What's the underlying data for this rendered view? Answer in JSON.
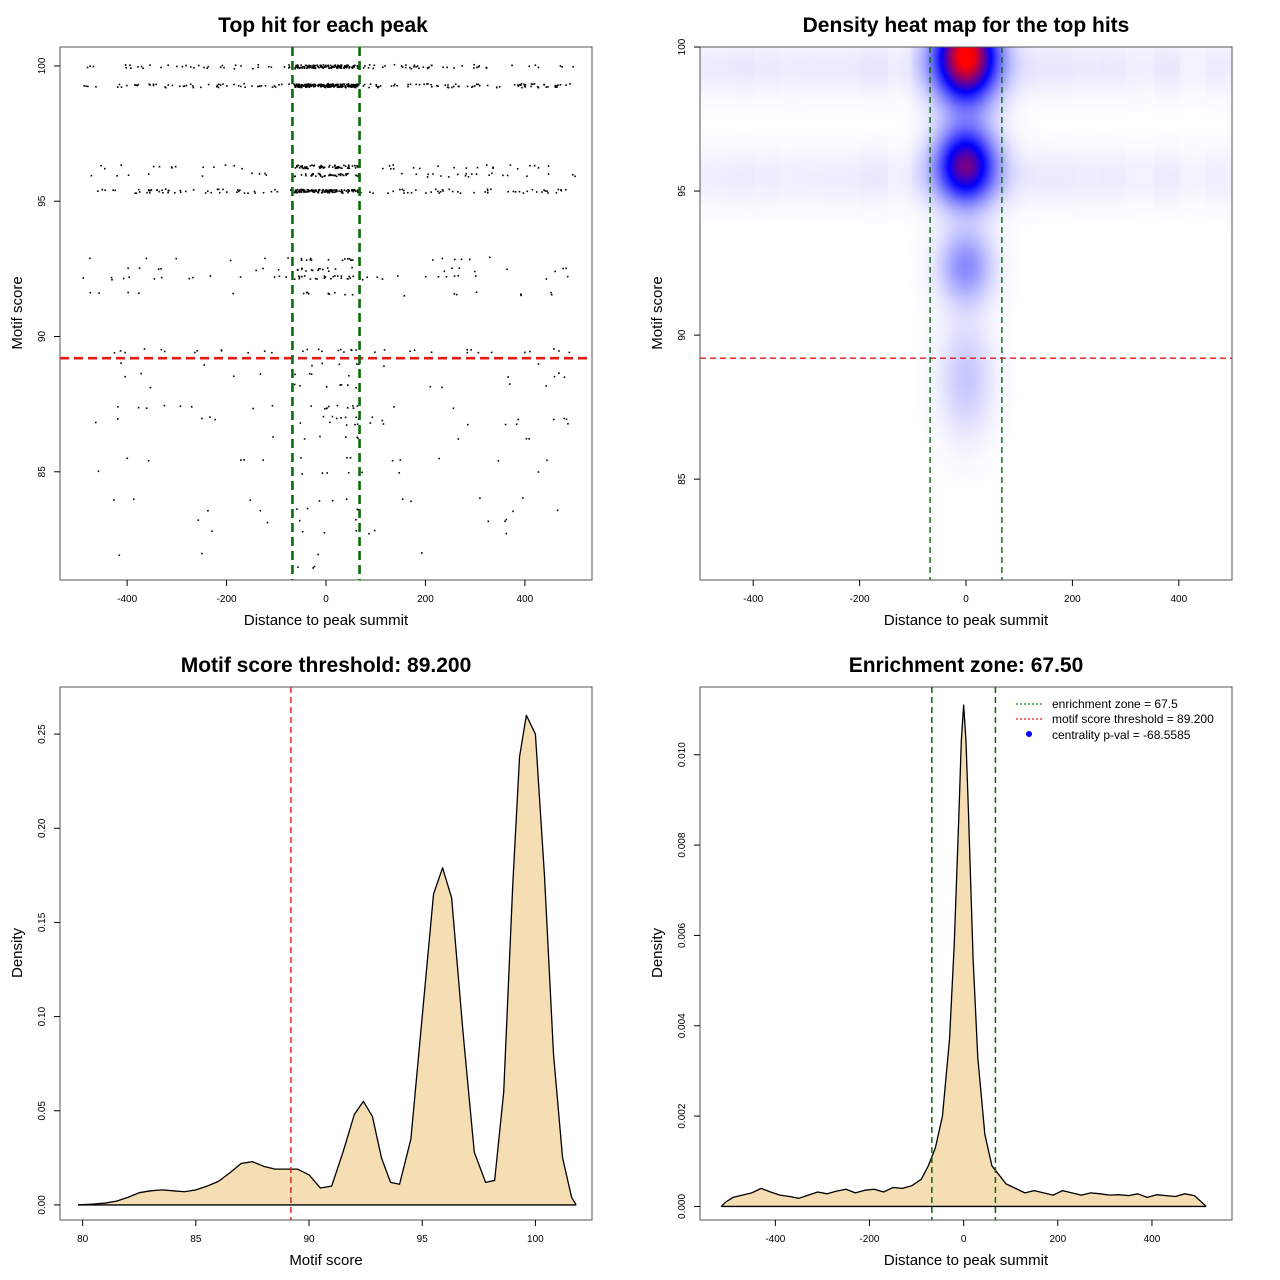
{
  "chart_data": [
    {
      "type": "scatter",
      "title": "Top hit for each peak",
      "xlabel": "Distance to peak summit",
      "ylabel": "Motif score",
      "xlim": [
        -535,
        535
      ],
      "ylim": [
        81,
        100.7
      ],
      "xticks": [
        -400,
        -200,
        0,
        200,
        400
      ],
      "yticks": [
        85,
        90,
        95,
        100
      ],
      "score_levels": [
        {
          "score": 100.0,
          "count": 90,
          "center": 120
        },
        {
          "score": 99.3,
          "count": 150,
          "center": 220
        },
        {
          "score": 96.3,
          "count": 40,
          "center": 60
        },
        {
          "score": 96.0,
          "count": 35,
          "center": 40
        },
        {
          "score": 95.4,
          "count": 110,
          "center": 120
        },
        {
          "score": 92.9,
          "count": 15,
          "center": 12
        },
        {
          "score": 92.5,
          "count": 18,
          "center": 12
        },
        {
          "score": 92.2,
          "count": 30,
          "center": 20
        },
        {
          "score": 91.6,
          "count": 15,
          "center": 8
        },
        {
          "score": 89.5,
          "count": 30,
          "center": 8
        },
        {
          "score": 89.0,
          "count": 6,
          "center": 3
        },
        {
          "score": 88.6,
          "count": 8,
          "center": 4
        },
        {
          "score": 88.2,
          "count": 8,
          "center": 4
        },
        {
          "score": 87.4,
          "count": 14,
          "center": 6
        },
        {
          "score": 87.0,
          "count": 12,
          "center": 5
        },
        {
          "score": 86.8,
          "count": 8,
          "center": 4
        },
        {
          "score": 86.3,
          "count": 6,
          "center": 3
        },
        {
          "score": 85.5,
          "count": 10,
          "center": 3
        },
        {
          "score": 85.0,
          "count": 6,
          "center": 2
        },
        {
          "score": 84.0,
          "count": 8,
          "center": 2
        },
        {
          "score": 83.6,
          "count": 6,
          "center": 2
        },
        {
          "score": 83.2,
          "count": 5,
          "center": 2
        },
        {
          "score": 82.8,
          "count": 5,
          "center": 2
        },
        {
          "score": 82.0,
          "count": 3,
          "center": 1
        },
        {
          "score": 81.5,
          "count": 2,
          "center": 1
        }
      ],
      "hlines": [
        {
          "y": 89.2,
          "color": "#e11a1a",
          "style": "dashed"
        }
      ],
      "vlines": [
        {
          "x": -67.5,
          "color": "#0a6b0a",
          "style": "dashed"
        },
        {
          "x": 67.5,
          "color": "#0a6b0a",
          "style": "dashed"
        }
      ]
    },
    {
      "type": "heatmap",
      "title": "Density heat map for the top hits",
      "xlabel": "Distance to peak summit",
      "ylabel": "Motif score",
      "xlim": [
        -500,
        500
      ],
      "ylim": [
        81.5,
        100
      ],
      "xticks": [
        -400,
        -200,
        0,
        200,
        400
      ],
      "yticks": [
        85,
        90,
        95,
        100
      ],
      "colors": {
        "low": "#ffffff",
        "mid": "#0000ff",
        "high": "#ff0000"
      },
      "hotspots": [
        {
          "x": 0,
          "y": 99.7,
          "sx": 40,
          "sy": 1.1,
          "w": 1.0
        },
        {
          "x": 0,
          "y": 95.9,
          "sx": 38,
          "sy": 0.9,
          "w": 0.72
        },
        {
          "x": 0,
          "y": 92.4,
          "sx": 35,
          "sy": 0.9,
          "w": 0.25
        },
        {
          "x": 0,
          "y": 88.5,
          "sx": 35,
          "sy": 1.4,
          "w": 0.12
        },
        {
          "x": 0,
          "y": 99.3,
          "sx": 520,
          "sy": 0.7,
          "w": 0.05
        },
        {
          "x": 0,
          "y": 95.5,
          "sx": 500,
          "sy": 0.7,
          "w": 0.045
        }
      ],
      "hlines": [
        {
          "y": 89.2,
          "color": "#e11a1a",
          "style": "dashed"
        }
      ],
      "vlines": [
        {
          "x": -67.5,
          "color": "#0a6b0a",
          "style": "dashed"
        },
        {
          "x": 67.5,
          "color": "#0a6b0a",
          "style": "dashed"
        }
      ]
    },
    {
      "type": "area",
      "title": "Motif score threshold: 89.200",
      "xlabel": "Motif score",
      "ylabel": "Density",
      "xlim": [
        79,
        102.5
      ],
      "ylim": [
        -0.008,
        0.275
      ],
      "xticks": [
        80,
        85,
        90,
        95,
        100
      ],
      "yticks": [
        0.0,
        0.05,
        0.1,
        0.15,
        0.2,
        0.25
      ],
      "ytick_labels": [
        "0.00",
        "0.05",
        "0.10",
        "0.15",
        "0.20",
        "0.25"
      ],
      "fill": "#f5deb3",
      "x": [
        79.8,
        80.5,
        81,
        81.5,
        82,
        82.5,
        83,
        83.5,
        84,
        84.5,
        85,
        85.5,
        86,
        86.5,
        87,
        87.5,
        88,
        88.5,
        89,
        89.5,
        90,
        90.5,
        91,
        91.5,
        92,
        92.4,
        92.8,
        93.2,
        93.6,
        94,
        94.5,
        95,
        95.5,
        95.9,
        96.3,
        96.8,
        97.3,
        97.8,
        98.2,
        98.6,
        99,
        99.3,
        99.6,
        100,
        100.4,
        100.8,
        101.2,
        101.6,
        101.8
      ],
      "values": [
        0.0,
        0.0005,
        0.001,
        0.002,
        0.004,
        0.0065,
        0.0075,
        0.008,
        0.0075,
        0.007,
        0.008,
        0.01,
        0.0125,
        0.017,
        0.022,
        0.023,
        0.0205,
        0.019,
        0.019,
        0.019,
        0.016,
        0.009,
        0.01,
        0.028,
        0.048,
        0.055,
        0.047,
        0.025,
        0.012,
        0.011,
        0.035,
        0.1,
        0.165,
        0.179,
        0.163,
        0.092,
        0.028,
        0.012,
        0.013,
        0.06,
        0.17,
        0.238,
        0.26,
        0.25,
        0.175,
        0.08,
        0.025,
        0.004,
        0.0
      ],
      "vlines": [
        {
          "x": 89.2,
          "color": "#e11a1a",
          "style": "dashed"
        }
      ]
    },
    {
      "type": "area",
      "title": "Enrichment zone: 67.50",
      "xlabel": "Distance to peak summit",
      "ylabel": "Density",
      "xlim": [
        -560,
        570
      ],
      "ylim": [
        -0.0003,
        0.0115
      ],
      "xticks": [
        -400,
        -200,
        0,
        200,
        400
      ],
      "yticks": [
        0.0,
        0.002,
        0.004,
        0.006,
        0.008,
        0.01
      ],
      "ytick_labels": [
        "0.000",
        "0.002",
        "0.004",
        "0.006",
        "0.008",
        "0.010"
      ],
      "fill": "#f5deb3",
      "x": [
        -515,
        -505,
        -490,
        -470,
        -450,
        -430,
        -410,
        -390,
        -370,
        -350,
        -330,
        -310,
        -290,
        -270,
        -250,
        -230,
        -210,
        -190,
        -170,
        -150,
        -130,
        -110,
        -90,
        -75,
        -60,
        -45,
        -30,
        -20,
        -10,
        -5,
        0,
        5,
        10,
        20,
        30,
        45,
        60,
        75,
        90,
        110,
        130,
        150,
        170,
        190,
        210,
        230,
        250,
        270,
        290,
        310,
        330,
        350,
        370,
        390,
        410,
        430,
        450,
        470,
        490,
        505,
        515
      ],
      "values": [
        0.0,
        0.0001,
        0.0002,
        0.00025,
        0.0003,
        0.0004,
        0.00032,
        0.00025,
        0.00022,
        0.00018,
        0.00025,
        0.00032,
        0.00028,
        0.00034,
        0.00038,
        0.0003,
        0.00036,
        0.00038,
        0.00032,
        0.00042,
        0.0004,
        0.00046,
        0.0006,
        0.0009,
        0.0013,
        0.002,
        0.0037,
        0.0058,
        0.0087,
        0.0103,
        0.0111,
        0.0103,
        0.0088,
        0.0055,
        0.0033,
        0.0016,
        0.0009,
        0.0007,
        0.0005,
        0.0004,
        0.0003,
        0.00035,
        0.0003,
        0.00025,
        0.00035,
        0.0003,
        0.00025,
        0.0003,
        0.00028,
        0.00025,
        0.00026,
        0.00024,
        0.00028,
        0.0002,
        0.00026,
        0.00024,
        0.00022,
        0.00028,
        0.00024,
        0.0001,
        0.0
      ],
      "vlines": [
        {
          "x": -67.5,
          "color": "#0a6b0a",
          "style": "dashed"
        },
        {
          "x": 67.5,
          "color": "#0a6b0a",
          "style": "dashed"
        }
      ],
      "legend": {
        "position": "top-right",
        "entries": [
          {
            "label": "enrichment zone = 67.5",
            "color": "#0a8a0a",
            "kind": "dotted-line"
          },
          {
            "label": "motif score threshold = 89.200",
            "color": "#e11a1a",
            "kind": "dotted-line"
          },
          {
            "label": "centrality p-val = -68.5585",
            "color": "#0000ff",
            "kind": "point"
          }
        ]
      }
    }
  ]
}
